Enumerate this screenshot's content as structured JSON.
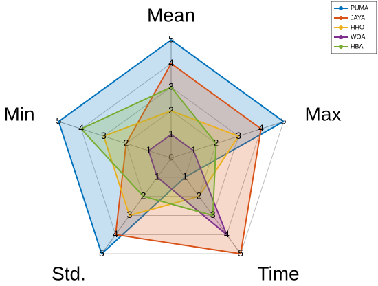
{
  "chart_data": {
    "type": "radar",
    "axes": [
      "Mean",
      "Max",
      "Time",
      "Std.",
      "Min"
    ],
    "rlim": [
      0,
      5
    ],
    "rticks": [
      1,
      2,
      3,
      4,
      5
    ],
    "grid": true,
    "legend": "upper right",
    "series": [
      {
        "name": "PUMA",
        "color": "#0072BD",
        "values": [
          5,
          5,
          1,
          5,
          5
        ]
      },
      {
        "name": "JAYA",
        "color": "#D95319",
        "values": [
          4,
          4,
          5,
          4,
          2
        ]
      },
      {
        "name": "HHO",
        "color": "#EDB120",
        "values": [
          2,
          3,
          2,
          3,
          3
        ]
      },
      {
        "name": "WOA",
        "color": "#7E2F8E",
        "values": [
          1,
          1,
          4,
          1,
          1
        ]
      },
      {
        "name": "HBA",
        "color": "#77AC30",
        "values": [
          3,
          2,
          3,
          2,
          4
        ]
      }
    ]
  }
}
